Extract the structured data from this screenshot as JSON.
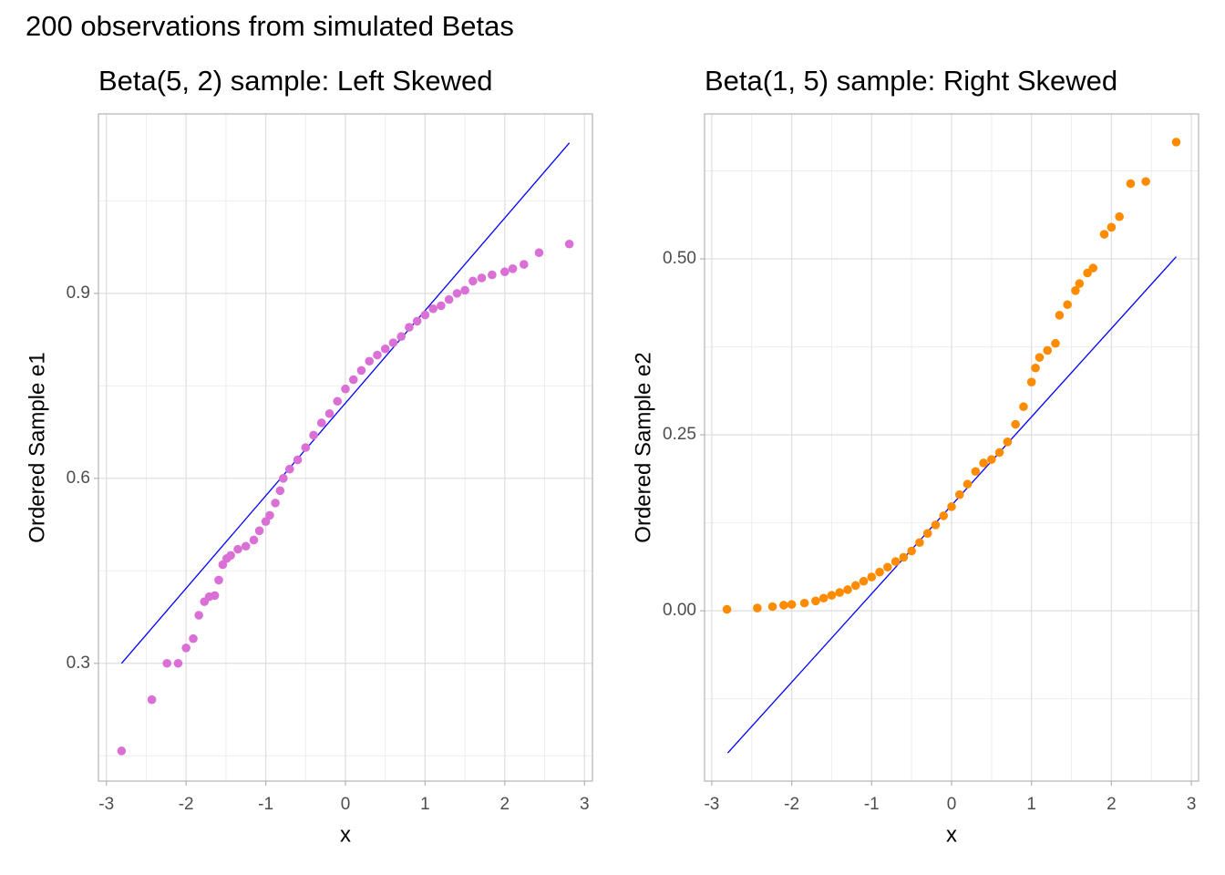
{
  "title": "200 observations from simulated Betas",
  "chart_data": [
    {
      "type": "scatter",
      "title": "Beta(5, 2) sample: Left Skewed",
      "xlabel": "x",
      "ylabel": "Ordered Sample e1",
      "color": "#da70d6",
      "x": [
        -2.81,
        -2.43,
        -2.24,
        -2.1,
        -2.0,
        -1.91,
        -1.84,
        -1.77,
        -1.71,
        -1.64,
        -1.59,
        -1.54,
        -1.49,
        -1.44,
        -1.35,
        -1.25,
        -1.15,
        -1.08,
        -1.0,
        -0.95,
        -0.88,
        -0.82,
        -0.78,
        -0.7,
        -0.6,
        -0.5,
        -0.4,
        -0.3,
        -0.2,
        -0.1,
        0.0,
        0.1,
        0.2,
        0.3,
        0.4,
        0.5,
        0.6,
        0.7,
        0.8,
        0.9,
        1.0,
        1.1,
        1.2,
        1.3,
        1.4,
        1.5,
        1.6,
        1.71,
        1.84,
        2.0,
        2.1,
        2.24,
        2.43,
        2.81
      ],
      "values": [
        0.158,
        0.241,
        0.3,
        0.3,
        0.325,
        0.34,
        0.378,
        0.4,
        0.408,
        0.41,
        0.435,
        0.46,
        0.47,
        0.475,
        0.485,
        0.49,
        0.5,
        0.515,
        0.53,
        0.54,
        0.56,
        0.58,
        0.6,
        0.615,
        0.63,
        0.65,
        0.67,
        0.69,
        0.705,
        0.725,
        0.745,
        0.76,
        0.775,
        0.79,
        0.8,
        0.81,
        0.82,
        0.83,
        0.845,
        0.855,
        0.865,
        0.875,
        0.88,
        0.89,
        0.9,
        0.905,
        0.92,
        0.925,
        0.93,
        0.935,
        0.94,
        0.947,
        0.966,
        0.98
      ],
      "line": {
        "x": [
          -2.81,
          2.81
        ],
        "values": [
          0.3,
          1.144
        ],
        "color": "#0000ff"
      },
      "xlim": [
        -3.1,
        3.1
      ],
      "ylim": [
        0.109,
        1.191
      ],
      "xticks": [
        -3,
        -2,
        -1,
        0,
        1,
        2,
        3
      ],
      "yticks": [
        0.3,
        0.6,
        0.9
      ],
      "grid": true,
      "minor_grid": true
    },
    {
      "type": "scatter",
      "title": "Beta(1, 5) sample: Right Skewed",
      "xlabel": "x",
      "ylabel": "Ordered Sample e2",
      "color": "#ff8c00",
      "x": [
        -2.81,
        -2.43,
        -2.24,
        -2.1,
        -2.0,
        -1.84,
        -1.7,
        -1.6,
        -1.5,
        -1.4,
        -1.3,
        -1.2,
        -1.1,
        -1.0,
        -0.9,
        -0.8,
        -0.7,
        -0.6,
        -0.5,
        -0.4,
        -0.3,
        -0.2,
        -0.1,
        0.0,
        0.1,
        0.2,
        0.3,
        0.4,
        0.5,
        0.6,
        0.7,
        0.8,
        0.9,
        1.0,
        1.05,
        1.1,
        1.2,
        1.3,
        1.35,
        1.45,
        1.55,
        1.6,
        1.7,
        1.77,
        1.91,
        2.0,
        2.1,
        2.24,
        2.43,
        2.81
      ],
      "values": [
        0.002,
        0.004,
        0.006,
        0.008,
        0.009,
        0.011,
        0.014,
        0.018,
        0.022,
        0.026,
        0.03,
        0.036,
        0.042,
        0.048,
        0.055,
        0.062,
        0.07,
        0.076,
        0.085,
        0.097,
        0.11,
        0.122,
        0.135,
        0.148,
        0.165,
        0.18,
        0.198,
        0.21,
        0.215,
        0.225,
        0.24,
        0.265,
        0.29,
        0.325,
        0.345,
        0.36,
        0.37,
        0.38,
        0.42,
        0.435,
        0.455,
        0.465,
        0.48,
        0.487,
        0.535,
        0.545,
        0.56,
        0.607,
        0.61,
        0.666
      ],
      "line": {
        "x": [
          -2.8,
          2.81
        ],
        "values": [
          -0.202,
          0.503
        ],
        "color": "#0000ff"
      },
      "xlim": [
        -3.09,
        3.09
      ],
      "ylim": [
        -0.242,
        0.706
      ],
      "xticks": [
        -3,
        -2,
        -1,
        0,
        1,
        2,
        3
      ],
      "yticks": [
        {
          "value": 0,
          "label": "0.00"
        },
        {
          "value": 0.25,
          "label": "0.25"
        },
        {
          "value": 0.5,
          "label": "0.50"
        }
      ],
      "grid": true,
      "minor_grid": true
    }
  ]
}
